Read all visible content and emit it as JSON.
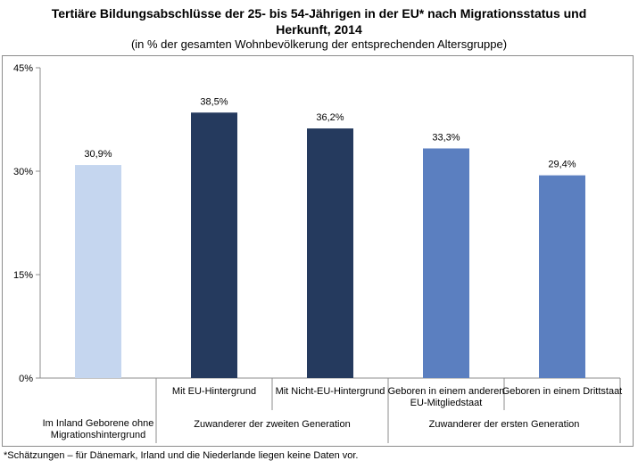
{
  "title_lines": [
    "Tertiäre Bildungsabschlüsse der 25- bis 54-Jährigen in der EU* nach Migrationsstatus und",
    "Herkunft, 2014"
  ],
  "subtitle": "(in %  der gesamten Wohnbevölkerung der entsprechenden Altersgruppe)",
  "footnote": "*Schätzungen – für Dänemark, Irland und die Niederlande liegen keine Daten vor.",
  "chart_data": {
    "type": "bar",
    "title": "Tertiäre Bildungsabschlüsse der 25- bis 54-Jährigen in der EU* nach Migrationsstatus und Herkunft, 2014",
    "ylim": [
      0,
      45
    ],
    "yticks": [
      0,
      15,
      30,
      45
    ],
    "ytick_labels": [
      "0%",
      "15%",
      "30%",
      "45%"
    ],
    "grid": false,
    "categories": [
      "",
      "Mit EU-Hintergrund",
      "Mit Nicht-EU-Hintergrund",
      "Geboren in einem anderen EU-Mitgliedstaat",
      "Geboren in einem Drittstaat"
    ],
    "category_label_lines": [
      [],
      [
        "Mit EU-Hintergrund"
      ],
      [
        "Mit Nicht-EU-Hintergrund"
      ],
      [
        "Geboren in einem anderen",
        "EU-Mitgliedstaat"
      ],
      [
        "Geboren in einem Drittstaat"
      ]
    ],
    "values": [
      30.9,
      38.5,
      36.2,
      33.3,
      29.4
    ],
    "value_labels": [
      "30,9%",
      "38,5%",
      "36,2%",
      "33,3%",
      "29,4%"
    ],
    "colors": [
      "#c5d6ef",
      "#253a5e",
      "#253a5e",
      "#5b7fc0",
      "#5b7fc0"
    ],
    "groups": [
      {
        "label_lines": [
          "Im Inland Geborene ohne",
          "Migrationshintergrund"
        ],
        "start": 0,
        "end": 0
      },
      {
        "label_lines": [
          "Zuwanderer der zweiten Generation"
        ],
        "start": 1,
        "end": 2
      },
      {
        "label_lines": [
          "Zuwanderer der ersten Generation"
        ],
        "start": 3,
        "end": 4
      }
    ]
  }
}
